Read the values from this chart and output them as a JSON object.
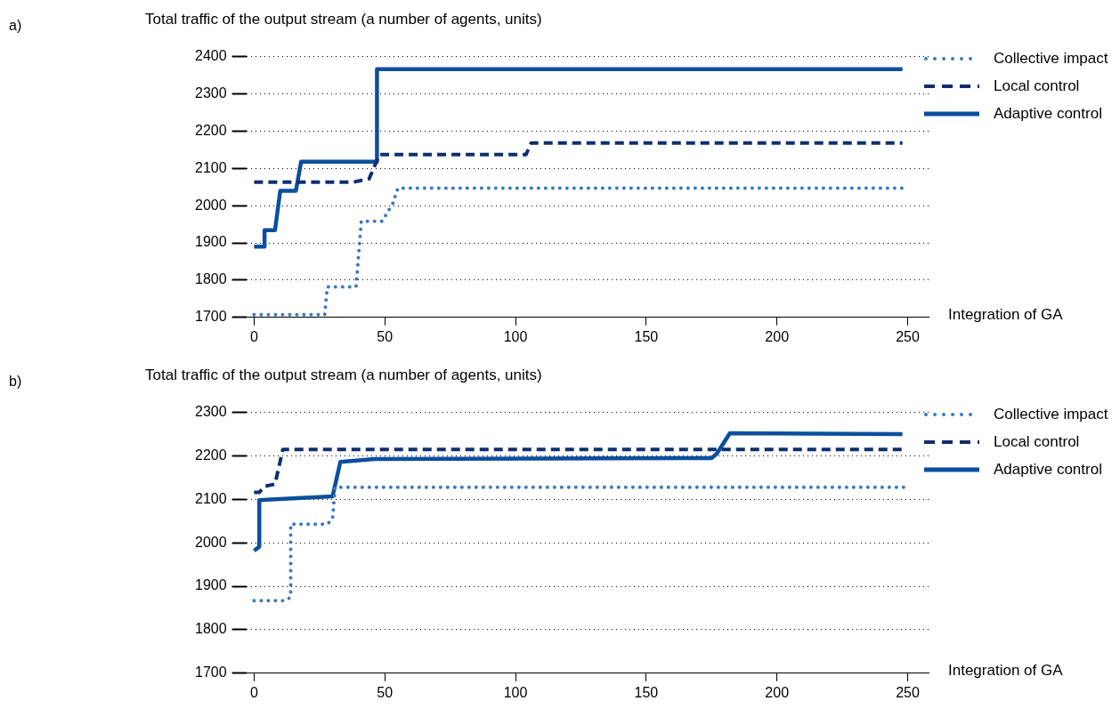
{
  "chart_data": [
    {
      "type": "line",
      "ylabel": "Total traffic of the output stream (a number of agents, units)",
      "xlabel": "Integration of GA",
      "annotations": [
        "a)"
      ],
      "xlim": [
        -3,
        258
      ],
      "xticks": [
        0,
        50,
        100,
        150,
        200,
        250
      ],
      "ylim": [
        1700,
        2400
      ],
      "yticks": [
        1700,
        1800,
        1900,
        2000,
        2100,
        2200,
        2300,
        2400
      ],
      "grid": "y",
      "legend": "right",
      "marker": "none",
      "series": [
        {
          "name": "Collective impact",
          "color": "#3a78c0",
          "line_style": "dotted",
          "x": [
            0,
            27,
            28,
            39,
            41,
            49,
            53,
            55,
            248
          ],
          "values": [
            1707,
            1707,
            1782,
            1782,
            1958,
            1958,
            2005,
            2047,
            2047
          ]
        },
        {
          "name": "Local control",
          "color": "#0d2f6e",
          "line_style": "dashed",
          "x": [
            0,
            38,
            44,
            48,
            104,
            106,
            248
          ],
          "values": [
            2063,
            2063,
            2072,
            2137,
            2137,
            2168,
            2168
          ]
        },
        {
          "name": "Adaptive control",
          "color": "#0a4f9e",
          "line_style": "solid",
          "x": [
            0,
            4,
            4,
            8,
            10,
            16,
            18,
            47,
            47,
            248
          ],
          "values": [
            1890,
            1890,
            1934,
            1934,
            2040,
            2040,
            2118,
            2118,
            2366,
            2366
          ]
        }
      ]
    },
    {
      "type": "line",
      "ylabel": "Total traffic of the output stream (a number of agents, units)",
      "xlabel": "Integration of GA",
      "annotations": [
        "b)"
      ],
      "xlim": [
        -3,
        258
      ],
      "xticks": [
        0,
        50,
        100,
        150,
        200,
        250
      ],
      "ylim": [
        1700,
        2300
      ],
      "yticks": [
        1700,
        1800,
        1900,
        2000,
        2100,
        2200,
        2300
      ],
      "grid": "y",
      "legend": "right",
      "marker": "none",
      "series": [
        {
          "name": "Collective impact",
          "color": "#3a78c0",
          "line_style": "dotted",
          "x": [
            0,
            12,
            14,
            14,
            28,
            30,
            31,
            249
          ],
          "values": [
            1867,
            1867,
            1875,
            2043,
            2043,
            2055,
            2128,
            2128
          ]
        },
        {
          "name": "Local control",
          "color": "#0d2f6e",
          "line_style": "dashed",
          "x": [
            0,
            2,
            4,
            8,
            11,
            248
          ],
          "values": [
            2116,
            2116,
            2130,
            2135,
            2215,
            2215
          ]
        },
        {
          "name": "Adaptive control",
          "color": "#0a4f9e",
          "line_style": "solid",
          "x": [
            0,
            2,
            2,
            8,
            30,
            33,
            46,
            175,
            177,
            182,
            248
          ],
          "values": [
            1982,
            1991,
            2098,
            2100,
            2107,
            2186,
            2193,
            2195,
            2205,
            2252,
            2250
          ]
        }
      ]
    }
  ]
}
